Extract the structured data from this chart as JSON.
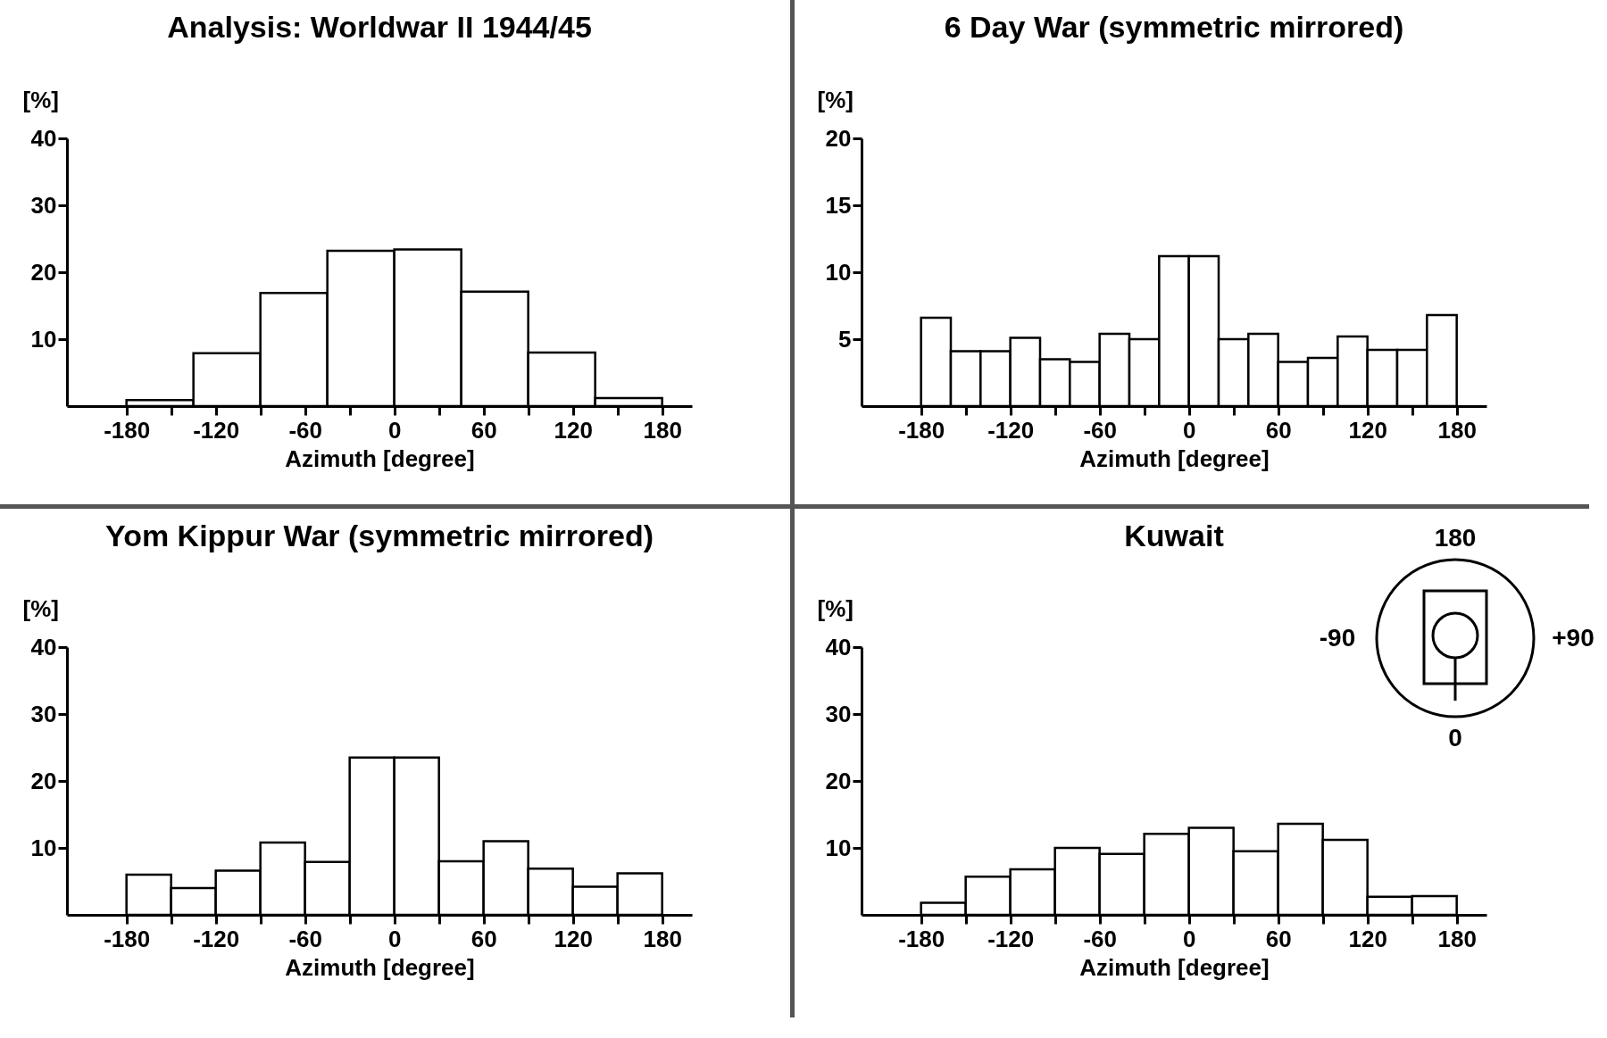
{
  "chart_data": [
    {
      "type": "histogram",
      "title": "Analysis: Worldwar II 1944/45",
      "xlabel": "Azimuth [degree]",
      "ylabel": "[%]",
      "bins": [
        -180,
        -135,
        -90,
        -45,
        0,
        45,
        90,
        135,
        180
      ],
      "values": [
        0.9,
        7.9,
        16.9,
        23.2,
        23.4,
        17.1,
        8.0,
        1.2
      ],
      "color": "#ffffff",
      "xlim": [
        -220,
        200
      ],
      "ylim": [
        0,
        40
      ],
      "yticks": [
        10,
        20,
        30,
        40
      ],
      "xticks": [
        -180,
        {
          "value": -150,
          "label": null
        },
        -120,
        {
          "value": -90,
          "label": null
        },
        -60,
        {
          "value": -30,
          "label": null
        },
        0,
        {
          "value": 30,
          "label": null
        },
        60,
        {
          "value": 90,
          "label": null
        },
        120,
        {
          "value": 150,
          "label": null
        },
        180
      ]
    },
    {
      "type": "histogram",
      "title": "6 Day War (symmetric mirrored)",
      "xlabel": "Azimuth [degree]",
      "ylabel": "[%]",
      "bins": [
        -180,
        -160,
        -140,
        -120,
        -100,
        -80,
        -60,
        -40,
        -20,
        0,
        20,
        40,
        60,
        80,
        100,
        120,
        140,
        160,
        180
      ],
      "values": [
        6.6,
        4.1,
        4.1,
        5.1,
        3.5,
        3.3,
        5.4,
        5.0,
        11.2,
        11.2,
        5.0,
        5.4,
        3.3,
        3.6,
        5.2,
        4.2,
        4.2,
        6.8
      ],
      "color": "#ffffff",
      "xlim": [
        -220,
        200
      ],
      "ylim": [
        0,
        20
      ],
      "yticks": [
        5,
        10,
        15,
        20
      ],
      "xticks": [
        -180,
        {
          "value": -150,
          "label": null
        },
        -120,
        {
          "value": -90,
          "label": null
        },
        -60,
        {
          "value": -30,
          "label": null
        },
        0,
        {
          "value": 30,
          "label": null
        },
        60,
        {
          "value": 90,
          "label": null
        },
        120,
        {
          "value": 150,
          "label": null
        },
        180
      ]
    },
    {
      "type": "histogram",
      "title": "Yom Kippur War (symmetric mirrored)",
      "xlabel": "Azimuth [degree]",
      "ylabel": "[%]",
      "bins": [
        -180,
        -150,
        -120,
        -90,
        -60,
        -30,
        0,
        30,
        60,
        90,
        120,
        150,
        180
      ],
      "values": [
        6.0,
        4.0,
        6.6,
        10.8,
        7.9,
        23.5,
        23.5,
        8.0,
        11.0,
        6.9,
        4.2,
        6.2
      ],
      "color": "#ffffff",
      "xlim": [
        -220,
        200
      ],
      "ylim": [
        0,
        40
      ],
      "yticks": [
        10,
        20,
        30,
        40
      ],
      "xticks": [
        -180,
        {
          "value": -150,
          "label": null
        },
        -120,
        {
          "value": -90,
          "label": null
        },
        -60,
        {
          "value": -30,
          "label": null
        },
        0,
        {
          "value": 30,
          "label": null
        },
        60,
        {
          "value": 90,
          "label": null
        },
        120,
        {
          "value": 150,
          "label": null
        },
        180
      ]
    },
    {
      "type": "histogram",
      "title": "Kuwait",
      "xlabel": "Azimuth [degree]",
      "ylabel": "[%]",
      "bins": [
        -180,
        -150,
        -120,
        -90,
        -60,
        -30,
        0,
        30,
        60,
        90,
        120,
        150,
        180
      ],
      "values": [
        1.8,
        5.7,
        6.8,
        10.0,
        9.1,
        12.1,
        13.0,
        9.5,
        13.6,
        11.2,
        2.7,
        2.8
      ],
      "color": "#ffffff",
      "xlim": [
        -220,
        200
      ],
      "ylim": [
        0,
        40
      ],
      "yticks": [
        10,
        20,
        30,
        40
      ],
      "xticks": [
        -180,
        {
          "value": -150,
          "label": null
        },
        -120,
        {
          "value": -90,
          "label": null
        },
        -60,
        {
          "value": -30,
          "label": null
        },
        0,
        {
          "value": 30,
          "label": null
        },
        60,
        {
          "value": 90,
          "label": null
        },
        120,
        {
          "value": 150,
          "label": null
        },
        180
      ],
      "annotations": [
        "180",
        "+90",
        "0",
        "-90"
      ]
    }
  ]
}
